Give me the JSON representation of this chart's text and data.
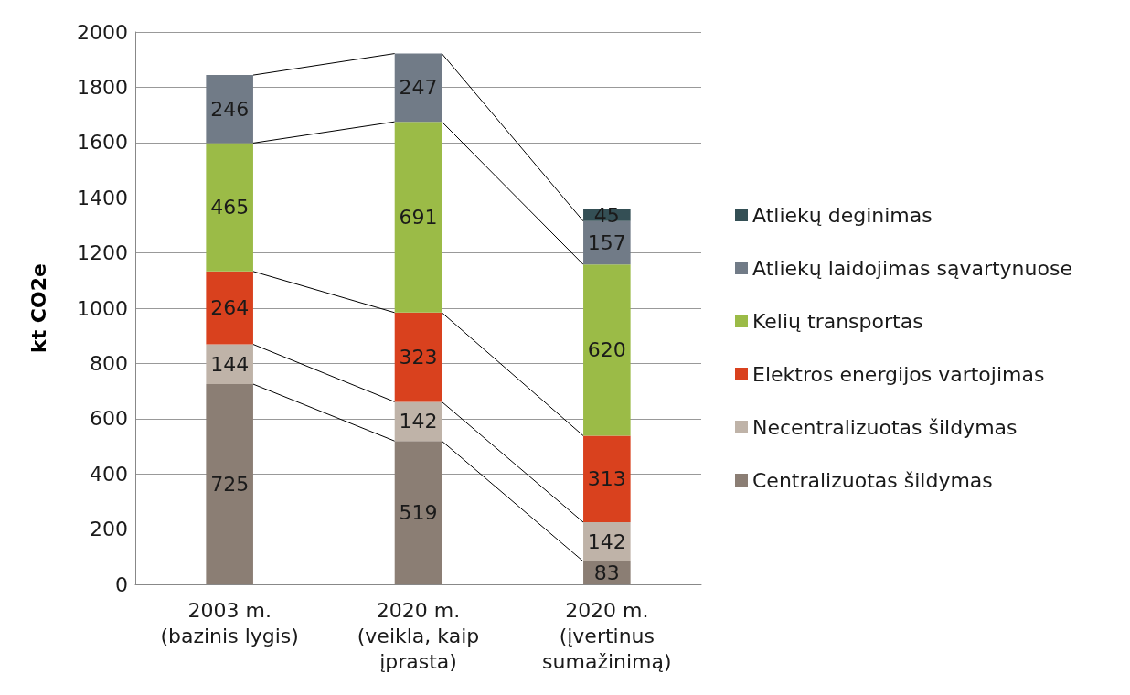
{
  "chart_data": {
    "type": "bar",
    "stacked": true,
    "ylabel": "kt CO2e",
    "categories": [
      "2003 m.\n(bazinis lygis)",
      "2020 m.\n(veikla, kaip\nįprasta)",
      "2020 m.\n(įvertinus\nsumažinimą)"
    ],
    "series": [
      {
        "name": "Centralizuotas šildymas",
        "color": "#8b7e74",
        "values": [
          725,
          519,
          83
        ]
      },
      {
        "name": "Necentralizuotas šildymas",
        "color": "#bfb3a8",
        "values": [
          144,
          142,
          142
        ]
      },
      {
        "name": "Elektros energijos vartojimas",
        "color": "#d9411e",
        "values": [
          264,
          323,
          313
        ]
      },
      {
        "name": "Kelių transportas",
        "color": "#9bbb47",
        "values": [
          465,
          691,
          620
        ]
      },
      {
        "name": "Atliekų laidojimas sąvartynuose",
        "color": "#717b87",
        "values": [
          246,
          247,
          157
        ]
      },
      {
        "name": "Atliekų deginimas",
        "color": "#344f55",
        "values": [
          null,
          null,
          45
        ]
      }
    ],
    "ylim": [
      0,
      2000
    ],
    "yticks": [
      0,
      200,
      400,
      600,
      800,
      1000,
      1200,
      1400,
      1600,
      1800,
      2000
    ],
    "grid": "y",
    "legend": "right",
    "data_labels": true
  }
}
